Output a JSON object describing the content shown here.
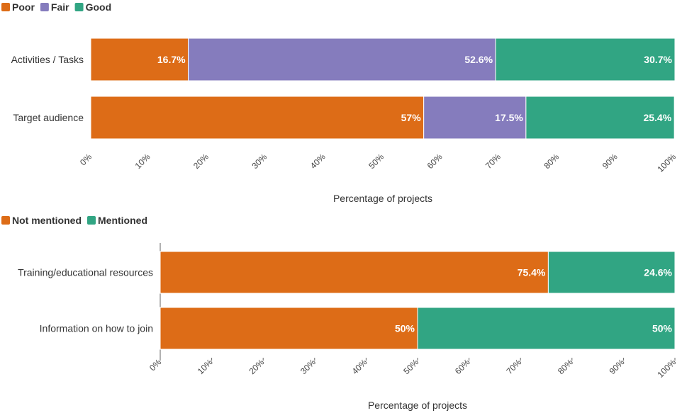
{
  "chart_data": [
    {
      "type": "bar",
      "orientation": "horizontal",
      "stacked": true,
      "categories": [
        "Activities / Tasks",
        "Target audience"
      ],
      "series": [
        {
          "name": "Poor",
          "color": "#dd6c17",
          "values": [
            16.7,
            57
          ]
        },
        {
          "name": "Fair",
          "color": "#857cbd",
          "values": [
            52.6,
            17.5
          ]
        },
        {
          "name": "Good",
          "color": "#31a583",
          "values": [
            30.7,
            25.4
          ]
        }
      ],
      "data_labels": [
        [
          "16.7%",
          "52.6%",
          "30.7%"
        ],
        [
          "57%",
          "17.5%",
          "25.4%"
        ]
      ],
      "xlabel": "Percentage of projects",
      "xlim": [
        0,
        100
      ],
      "xticks": [
        "0%",
        "10%",
        "20%",
        "30%",
        "40%",
        "50%",
        "60%",
        "70%",
        "80%",
        "90%",
        "100%"
      ],
      "legend": "top-left"
    },
    {
      "type": "bar",
      "orientation": "horizontal",
      "stacked": true,
      "categories": [
        "Training/educational resources",
        "Information on how to join"
      ],
      "series": [
        {
          "name": "Not mentioned",
          "color": "#dd6c17",
          "values": [
            75.4,
            50
          ]
        },
        {
          "name": "Mentioned",
          "color": "#31a583",
          "values": [
            24.6,
            50
          ]
        }
      ],
      "data_labels": [
        [
          "75.4%",
          "24.6%"
        ],
        [
          "50%",
          "50%"
        ]
      ],
      "xlabel": "Percentage of projects",
      "xlim": [
        0,
        100
      ],
      "xticks": [
        "0%",
        "10%",
        "20%",
        "30%",
        "40%",
        "50%",
        "60%",
        "70%",
        "80%",
        "90%",
        "100%"
      ],
      "legend": "top-left"
    }
  ]
}
